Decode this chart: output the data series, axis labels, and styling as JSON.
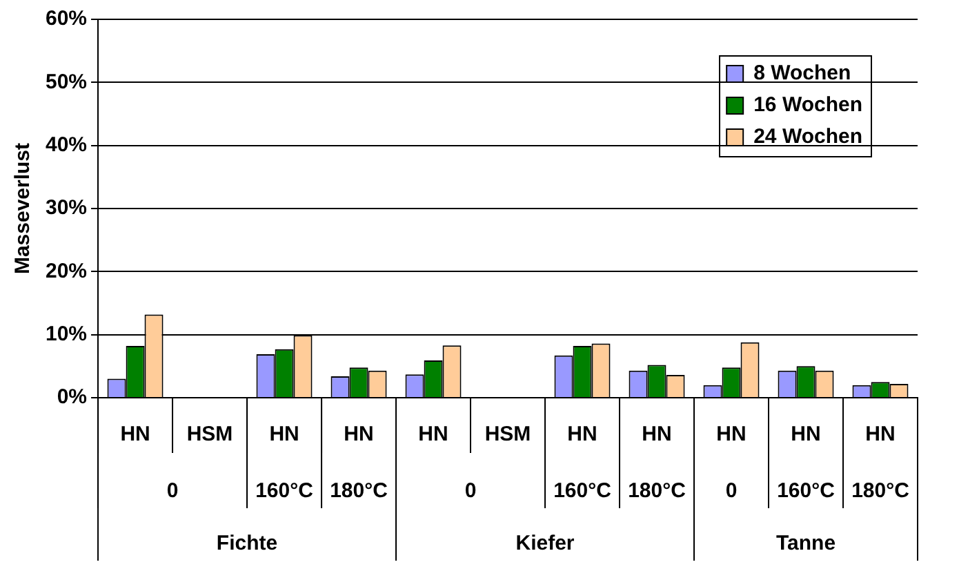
{
  "chart_data": {
    "type": "bar",
    "ylabel": "Masseverlust",
    "categories": [
      "HN",
      "HSM",
      "HN",
      "HN",
      "HN",
      "HSM",
      "HN",
      "HN",
      "HN",
      "HN",
      "HN"
    ],
    "series": [
      {
        "name": "8 Wochen",
        "color": "#9999ff",
        "values": [
          3.0,
          null,
          6.9,
          3.4,
          3.7,
          null,
          6.7,
          4.3,
          2.0,
          4.3,
          2.0
        ]
      },
      {
        "name": "16 Wochen",
        "color": "#008000",
        "values": [
          8.2,
          null,
          7.7,
          4.8,
          5.9,
          null,
          8.2,
          5.2,
          4.8,
          5.0,
          2.5
        ]
      },
      {
        "name": "24 Wochen",
        "color": "#ffcc99",
        "values": [
          13.2,
          null,
          9.9,
          4.3,
          8.3,
          null,
          8.6,
          3.6,
          8.8,
          4.3,
          2.2
        ]
      }
    ],
    "ylim": [
      0,
      60
    ],
    "yticks": [
      {
        "value": 0,
        "label": "0%"
      },
      {
        "value": 10,
        "label": "10%"
      },
      {
        "value": 20,
        "label": "20%"
      },
      {
        "value": 30,
        "label": "30%"
      },
      {
        "value": 40,
        "label": "40%"
      },
      {
        "value": 50,
        "label": "50%"
      },
      {
        "value": 60,
        "label": "60%"
      }
    ],
    "grid": "y",
    "legend": "top right",
    "annotations": [
      "0",
      "160°C",
      "180°C",
      "0",
      "160°C",
      "180°C",
      "0",
      "160°C",
      "180°C",
      "Fichte",
      "Kiefer",
      "Tanne"
    ]
  }
}
